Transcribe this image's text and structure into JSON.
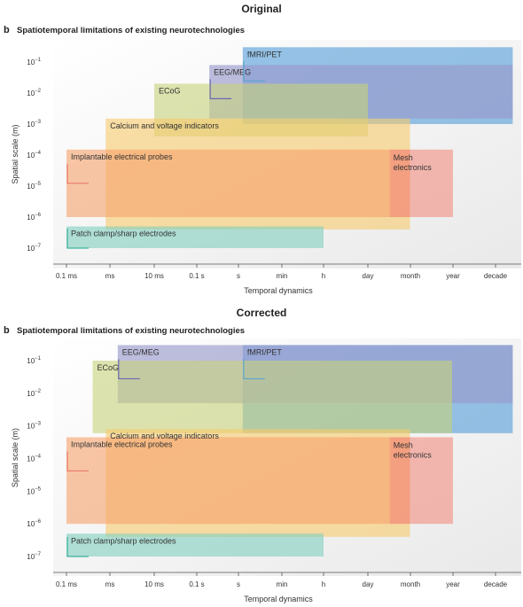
{
  "figure": {
    "panel_letter": "b",
    "panel_title": "Spatiotemporal limitations of existing neurotechnologies",
    "xlabel": "Temporal dynamics",
    "ylabel": "Spatial scale (m)"
  },
  "colors": {
    "fmri": "#5ea3da",
    "eeg": "#9a99cc",
    "ecog": "#c8d27a",
    "calcium": "#f7c96a",
    "probes": "#f6a26b",
    "mesh": "#f28e80",
    "patch": "#7ecfbe",
    "outline": "#8a8a8a",
    "fmri_outline": "#5aa6cc",
    "eeg_outline": "#6a6ab0",
    "probes_outline": "#e87a6a",
    "patch_outline": "#3fb39c"
  },
  "chart_data": [
    {
      "section_title": "Original",
      "type": "range-rectangles",
      "x_scale": "log",
      "x_ticks": [
        "0.1 ms",
        "ms",
        "10 ms",
        "0.1 s",
        "s",
        "min",
        "h",
        "day",
        "month",
        "year",
        "decade"
      ],
      "x_tick_seconds": [
        0.0001,
        0.001,
        0.01,
        0.1,
        1,
        60,
        3600,
        86400,
        2592000,
        31536000,
        315360000
      ],
      "y_scale": "log",
      "y_ticks_exponent": [
        -1,
        -2,
        -3,
        -4,
        -5,
        -6,
        -7
      ],
      "series": [
        {
          "label": "fMRI/PET",
          "color_key": "fmri",
          "t_min_s": 1.5,
          "t_max_s": 800000000,
          "s_min_m": 0.001,
          "s_max_m": 0.3,
          "label_corner": "top-left",
          "marker": "outline"
        },
        {
          "label": "EEG/MEG",
          "color_key": "eeg",
          "t_min_s": 0.2,
          "t_max_s": 800000000,
          "s_min_m": 0.0015,
          "s_max_m": 0.08,
          "label_corner": "top-left",
          "marker": "outline"
        },
        {
          "label": "ECoG",
          "color_key": "ecog",
          "t_min_s": 0.01,
          "t_max_s": 86400,
          "s_min_m": 0.0004,
          "s_max_m": 0.02,
          "label_corner": "top-left",
          "marker": "none"
        },
        {
          "label": "Calcium and voltage indicators",
          "color_key": "calcium",
          "t_min_s": 0.0008,
          "t_max_s": 2500000,
          "s_min_m": 4e-07,
          "s_max_m": 0.0015,
          "label_corner": "top-left",
          "marker": "none"
        },
        {
          "label": "Implantable electrical probes",
          "color_key": "probes",
          "t_min_s": 0.0001,
          "t_max_s": 2500000,
          "s_min_m": 1e-06,
          "s_max_m": 0.00015,
          "label_corner": "top-left",
          "marker": "outline"
        },
        {
          "label": "Mesh electronics",
          "color_key": "mesh",
          "t_min_s": 500000,
          "t_max_s": 31536000,
          "s_min_m": 1e-06,
          "s_max_m": 0.00015,
          "label_corner": "top-left",
          "marker": "none"
        },
        {
          "label": "Patch clamp/sharp electrodes",
          "color_key": "patch",
          "t_min_s": 0.0001,
          "t_max_s": 3600,
          "s_min_m": 1e-07,
          "s_max_m": 5e-07,
          "label_corner": "top-left",
          "marker": "outline"
        }
      ]
    },
    {
      "section_title": "Corrected",
      "type": "range-rectangles",
      "x_scale": "log",
      "x_ticks": [
        "0.1 ms",
        "ms",
        "10 ms",
        "0.1 s",
        "s",
        "min",
        "h",
        "day",
        "month",
        "year",
        "decade"
      ],
      "x_tick_seconds": [
        0.0001,
        0.001,
        0.01,
        0.1,
        1,
        60,
        3600,
        86400,
        2592000,
        31536000,
        315360000
      ],
      "y_scale": "log",
      "y_ticks_exponent": [
        -1,
        -2,
        -3,
        -4,
        -5,
        -6,
        -7
      ],
      "series": [
        {
          "label": "fMRI/PET",
          "color_key": "fmri",
          "t_min_s": 1.5,
          "t_max_s": 800000000,
          "s_min_m": 0.0006,
          "s_max_m": 0.3,
          "label_corner": "top-left",
          "marker": "outline"
        },
        {
          "label": "EEG/MEG",
          "color_key": "eeg",
          "t_min_s": 0.0015,
          "t_max_s": 800000000,
          "s_min_m": 0.005,
          "s_max_m": 0.3,
          "label_corner": "top-left",
          "marker": "outline"
        },
        {
          "label": "ECoG",
          "color_key": "ecog",
          "t_min_s": 0.0004,
          "t_max_s": 30000000,
          "s_min_m": 0.0006,
          "s_max_m": 0.1,
          "label_corner": "top-left",
          "marker": "none"
        },
        {
          "label": "Calcium and voltage indicators",
          "color_key": "calcium",
          "t_min_s": 0.0008,
          "t_max_s": 2500000,
          "s_min_m": 4e-07,
          "s_max_m": 0.0008,
          "label_corner": "top-left",
          "marker": "none"
        },
        {
          "label": "Implantable electrical probes",
          "color_key": "probes",
          "t_min_s": 0.0001,
          "t_max_s": 2500000,
          "s_min_m": 1e-06,
          "s_max_m": 0.00045,
          "label_corner": "top-left",
          "marker": "outline"
        },
        {
          "label": "Mesh electronics",
          "color_key": "mesh",
          "t_min_s": 500000,
          "t_max_s": 31536000,
          "s_min_m": 1e-06,
          "s_max_m": 0.00045,
          "label_corner": "top-left",
          "marker": "none"
        },
        {
          "label": "Patch clamp/sharp electrodes",
          "color_key": "patch",
          "t_min_s": 0.0001,
          "t_max_s": 3600,
          "s_min_m": 1e-07,
          "s_max_m": 5e-07,
          "label_corner": "top-left",
          "marker": "outline"
        }
      ]
    }
  ]
}
